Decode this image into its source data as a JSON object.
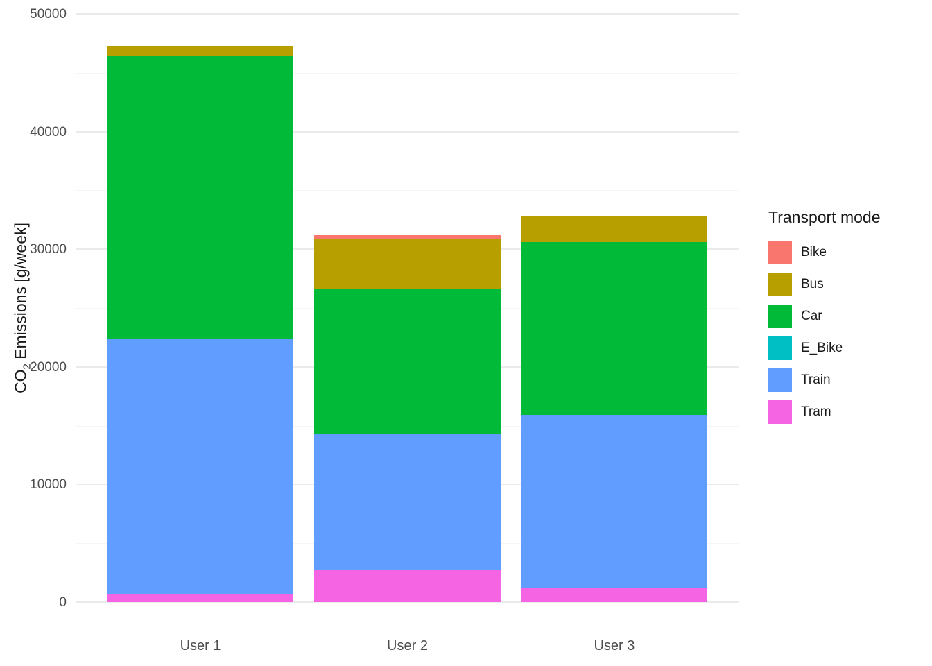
{
  "chart_data": {
    "type": "bar",
    "stacked": true,
    "title": "",
    "legend_title": "Transport mode",
    "legend_position": "right",
    "grid": true,
    "categories": [
      "User 1",
      "User 2",
      "User 3"
    ],
    "series": [
      {
        "name": "Bike",
        "color": "#F8766D",
        "values": [
          0,
          300,
          0
        ]
      },
      {
        "name": "Bus",
        "color": "#B79F00",
        "values": [
          800,
          4300,
          2200
        ]
      },
      {
        "name": "Car",
        "color": "#00BA38",
        "values": [
          24000,
          12300,
          14700
        ]
      },
      {
        "name": "E_Bike",
        "color": "#00BFC4",
        "values": [
          0,
          0,
          0
        ]
      },
      {
        "name": "Train",
        "color": "#619CFF",
        "values": [
          21700,
          11600,
          14700
        ]
      },
      {
        "name": "Tram",
        "color": "#F564E3",
        "values": [
          700,
          2700,
          1200
        ]
      }
    ],
    "stack_order_bottom_to_top": [
      "Tram",
      "Train",
      "E_Bike",
      "Car",
      "Bus",
      "Bike"
    ],
    "totals": [
      47200,
      31200,
      32800
    ],
    "y_axis": {
      "label_prefix": "CO",
      "label_sub": "2",
      "label_suffix": " Emissions [g/week]",
      "ticks": [
        0,
        10000,
        20000,
        30000,
        40000,
        50000
      ],
      "minor_ticks": [
        5000,
        15000,
        25000,
        35000,
        45000
      ],
      "ylim": [
        0,
        50000
      ]
    },
    "x_axis": {
      "label": ""
    }
  },
  "colors": {
    "background": "#FFFFFF",
    "grid_major": "#EBEBEB",
    "grid_minor": "#F5F5F5",
    "axis_text": "#4D4D4D",
    "title_text": "#1A1A1A"
  }
}
